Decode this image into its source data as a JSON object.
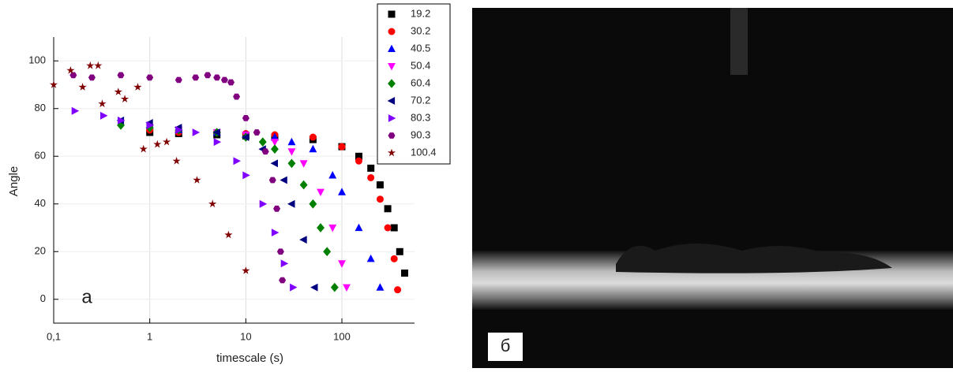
{
  "chart_data": {
    "type": "scatter",
    "x_label": "timescale (s)",
    "y_label": "Angle",
    "annotation": "а",
    "xscale": "log",
    "xlim": [
      0.1,
      570
    ],
    "xticks": [
      {
        "value": 0.1,
        "label": "0,1"
      },
      1,
      10,
      100
    ],
    "ylim": [
      -10,
      110
    ],
    "yticks": [
      0,
      20,
      40,
      60,
      80,
      100
    ],
    "grid": true,
    "legend": "top-right",
    "series": [
      {
        "name": "19.2",
        "color": "#000000",
        "marker": "square",
        "x": [
          1,
          2,
          5,
          10,
          20,
          50,
          100,
          150,
          200,
          250,
          300,
          350,
          400,
          450
        ],
        "values": [
          70,
          69.5,
          69,
          68.5,
          68,
          67,
          64,
          60,
          55,
          48,
          38,
          30,
          20,
          11
        ]
      },
      {
        "name": "30.2",
        "color": "#ff0000",
        "marker": "circle",
        "x": [
          1,
          2,
          5,
          10,
          20,
          50,
          100,
          150,
          200,
          250,
          300,
          350,
          380
        ],
        "values": [
          71,
          70,
          70,
          69.5,
          69,
          68,
          64,
          58,
          51,
          42,
          30,
          17,
          4
        ]
      },
      {
        "name": "40.5",
        "color": "#0000ff",
        "marker": "triangle-up",
        "x": [
          1,
          2,
          5,
          10,
          20,
          30,
          50,
          80,
          100,
          150,
          200,
          250
        ],
        "values": [
          73,
          71,
          70,
          69,
          68,
          66,
          63,
          52,
          45,
          30,
          17,
          5
        ]
      },
      {
        "name": "50.4",
        "color": "#ff00ff",
        "marker": "triangle-down",
        "x": [
          1,
          2,
          5,
          10,
          20,
          30,
          40,
          60,
          80,
          100,
          112
        ],
        "values": [
          72,
          71,
          70,
          69,
          66,
          62,
          57,
          45,
          30,
          15,
          5
        ]
      },
      {
        "name": "60.4",
        "color": "#008000",
        "marker": "diamond",
        "x": [
          0.5,
          1,
          2,
          5,
          10,
          15,
          20,
          30,
          40,
          50,
          60,
          70,
          84
        ],
        "values": [
          73,
          72,
          71,
          70,
          68,
          66,
          63,
          57,
          48,
          40,
          30,
          20,
          5
        ]
      },
      {
        "name": "70.2",
        "color": "#000080",
        "marker": "triangle-left",
        "x": [
          0.5,
          1,
          2,
          5,
          10,
          15,
          20,
          25,
          30,
          40,
          52
        ],
        "values": [
          75,
          74,
          72,
          70,
          68,
          63,
          57,
          50,
          40,
          25,
          5
        ]
      },
      {
        "name": "80.3",
        "color": "#8000ff",
        "marker": "triangle-right",
        "x": [
          0.166,
          0.33,
          0.5,
          1,
          2,
          3,
          5,
          8,
          10,
          15,
          20,
          25,
          31
        ],
        "values": [
          79,
          77,
          75,
          73,
          71,
          70,
          66,
          58,
          52,
          40,
          28,
          15,
          5
        ]
      },
      {
        "name": "90.3",
        "color": "#800080",
        "marker": "hexagon",
        "x": [
          0.16,
          0.25,
          0.5,
          1,
          2,
          3,
          4,
          5,
          6,
          7,
          8,
          10,
          13,
          16,
          19,
          21,
          23,
          24
        ],
        "values": [
          94,
          93,
          94,
          93,
          92,
          93,
          94,
          93,
          92,
          91,
          85,
          76,
          70,
          62,
          50,
          38,
          20,
          8
        ]
      },
      {
        "name": "100.4",
        "color": "#800000",
        "marker": "star",
        "x": [
          0.1,
          0.15,
          0.2,
          0.24,
          0.29,
          0.32,
          0.47,
          0.55,
          0.75,
          0.86,
          1.2,
          1.5,
          1.9,
          3.1,
          4.5,
          6.6,
          10
        ],
        "values": [
          90,
          96,
          89,
          98,
          98,
          82,
          87,
          84,
          89,
          63,
          65,
          66,
          58,
          50,
          40,
          27,
          12
        ]
      }
    ]
  },
  "photo": {
    "label": "б"
  }
}
